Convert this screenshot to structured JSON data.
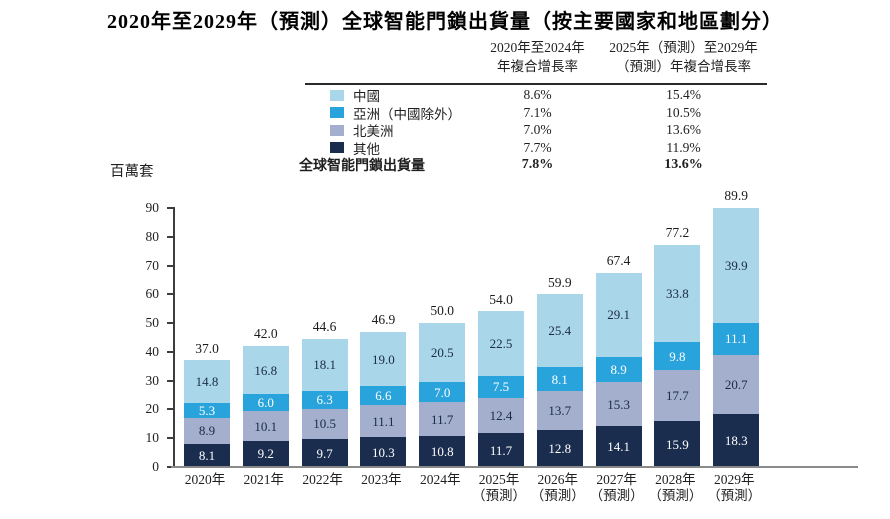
{
  "title": "2020年至2029年（預測）全球智能門鎖出貨量（按主要國家和地區劃分）",
  "unit_label": "百萬套",
  "cagr_table": {
    "col1_header": "2020年至2024年\n年複合增長率",
    "col2_header": "2025年（預測）至2029年\n（預測）年複合增長率",
    "rows": [
      {
        "label": "中國",
        "color": "#A9D6E9",
        "cagr_2020_2024": "8.6%",
        "cagr_2025_2029": "15.4%"
      },
      {
        "label": "亞洲（中國除外）",
        "color": "#29A3DB",
        "cagr_2020_2024": "7.1%",
        "cagr_2025_2029": "10.5%"
      },
      {
        "label": "北美洲",
        "color": "#A3AFCC",
        "cagr_2020_2024": "7.0%",
        "cagr_2025_2029": "13.6%"
      },
      {
        "label": "其他",
        "color": "#1A2D4E",
        "cagr_2020_2024": "7.7%",
        "cagr_2025_2029": "11.9%"
      }
    ],
    "total_row": {
      "label": "全球智能門鎖出貨量",
      "cagr_2020_2024": "7.8%",
      "cagr_2025_2029": "13.6%"
    }
  },
  "chart_data": {
    "type": "bar",
    "stacked": true,
    "title": "2020年至2029年（預測）全球智能門鎖出貨量（按主要國家和地區劃分）",
    "ylabel": "百萬套",
    "ylim": [
      0,
      90
    ],
    "y_ticks": [
      0,
      10,
      20,
      30,
      40,
      50,
      60,
      70,
      80,
      90
    ],
    "grid": false,
    "legend_position": "top",
    "categories": [
      "2020年",
      "2021年",
      "2022年",
      "2023年",
      "2024年",
      "2025年",
      "2026年",
      "2027年",
      "2028年",
      "2029年"
    ],
    "category_sublabels": [
      "",
      "",
      "",
      "",
      "",
      "（預測）",
      "（預測）",
      "（預測）",
      "（預測）",
      "（預測）"
    ],
    "series": [
      {
        "name": "其他",
        "color": "#1A2D4E",
        "label_color": "#FFFFFF",
        "values": [
          8.1,
          9.2,
          9.7,
          10.3,
          10.8,
          11.7,
          12.8,
          14.1,
          15.9,
          18.3
        ]
      },
      {
        "name": "北美洲",
        "color": "#A3AFCC",
        "label_color": "#1B2B47",
        "values": [
          8.9,
          10.1,
          10.5,
          11.1,
          11.7,
          12.4,
          13.7,
          15.3,
          17.7,
          20.7
        ]
      },
      {
        "name": "亞洲（中國除外）",
        "color": "#29A3DB",
        "label_color": "#FFFFFF",
        "values": [
          5.3,
          6.0,
          6.3,
          6.6,
          7.0,
          7.5,
          8.1,
          8.9,
          9.8,
          11.1
        ]
      },
      {
        "name": "中國",
        "color": "#A9D6E9",
        "label_color": "#1B2B47",
        "values": [
          14.8,
          16.8,
          18.1,
          19.0,
          20.5,
          22.5,
          25.4,
          29.1,
          33.8,
          39.9
        ]
      }
    ],
    "totals": [
      37.0,
      42.0,
      44.6,
      46.9,
      50.0,
      54.0,
      59.9,
      67.4,
      77.2,
      89.9
    ]
  }
}
